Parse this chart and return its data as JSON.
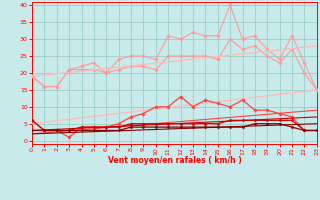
{
  "xlabel": "Vent moyen/en rafales ( km/h )",
  "xlim": [
    0,
    23
  ],
  "ylim": [
    -1,
    41
  ],
  "yticks": [
    0,
    5,
    10,
    15,
    20,
    25,
    30,
    35,
    40
  ],
  "xticks": [
    0,
    1,
    2,
    3,
    4,
    5,
    6,
    7,
    8,
    9,
    10,
    11,
    12,
    13,
    14,
    15,
    16,
    17,
    18,
    19,
    20,
    21,
    22,
    23
  ],
  "background_color": "#c8eaea",
  "grid_color": "#90c8c0",
  "series": [
    {
      "name": "line1_lightest_jagged",
      "color": "#ff9999",
      "lw": 0.8,
      "marker": "D",
      "markersize": 1.8,
      "data_x": [
        0,
        1,
        2,
        3,
        4,
        5,
        6,
        7,
        8,
        9,
        10,
        11,
        12,
        13,
        14,
        15,
        16,
        17,
        18,
        19,
        20,
        21,
        22,
        23
      ],
      "data_y": [
        19,
        16,
        16,
        21,
        22,
        23,
        20,
        24,
        25,
        25,
        24,
        31,
        30,
        32,
        31,
        31,
        40,
        30,
        31,
        27,
        24,
        31,
        23,
        15
      ]
    },
    {
      "name": "line2_light_upper",
      "color": "#ff9999",
      "lw": 0.8,
      "marker": "D",
      "markersize": 1.8,
      "data_x": [
        0,
        1,
        2,
        3,
        4,
        5,
        6,
        7,
        8,
        9,
        10,
        11,
        12,
        13,
        14,
        15,
        16,
        17,
        18,
        19,
        20,
        21,
        22,
        23
      ],
      "data_y": [
        19,
        16,
        16,
        21,
        21,
        21,
        20,
        21,
        22,
        22,
        21,
        25,
        25,
        25,
        25,
        24,
        30,
        27,
        28,
        25,
        23,
        27,
        20,
        15
      ]
    },
    {
      "name": "line3_light_trend_upper",
      "color": "#ffbbbb",
      "lw": 1.0,
      "marker": null,
      "markersize": 0,
      "data_x": [
        0,
        23
      ],
      "data_y": [
        19,
        28
      ]
    },
    {
      "name": "line4_light_trend_lower",
      "color": "#ffbbbb",
      "lw": 1.0,
      "marker": null,
      "markersize": 0,
      "data_x": [
        0,
        23
      ],
      "data_y": [
        5,
        15
      ]
    },
    {
      "name": "line5_medium_jagged",
      "color": "#ff4444",
      "lw": 0.9,
      "marker": "D",
      "markersize": 1.8,
      "data_x": [
        0,
        1,
        2,
        3,
        4,
        5,
        6,
        7,
        8,
        9,
        10,
        11,
        12,
        13,
        14,
        15,
        16,
        17,
        18,
        19,
        20,
        21,
        22,
        23
      ],
      "data_y": [
        6,
        3,
        3,
        1,
        4,
        4,
        4,
        5,
        7,
        8,
        10,
        10,
        13,
        10,
        12,
        11,
        10,
        12,
        9,
        9,
        8,
        7,
        3,
        3
      ]
    },
    {
      "name": "line6_medium_trend",
      "color": "#ff4444",
      "lw": 0.8,
      "marker": null,
      "markersize": 0,
      "data_x": [
        0,
        23
      ],
      "data_y": [
        2,
        9
      ]
    },
    {
      "name": "line7_dark_jagged",
      "color": "#cc0000",
      "lw": 0.9,
      "marker": "D",
      "markersize": 1.5,
      "data_x": [
        0,
        1,
        2,
        3,
        4,
        5,
        6,
        7,
        8,
        9,
        10,
        11,
        12,
        13,
        14,
        15,
        16,
        17,
        18,
        19,
        20,
        21,
        22,
        23
      ],
      "data_y": [
        6,
        3,
        3,
        3,
        4,
        4,
        4,
        4,
        5,
        5,
        5,
        5,
        5,
        5,
        5,
        5,
        6,
        6,
        6,
        6,
        6,
        6,
        3,
        3
      ]
    },
    {
      "name": "line8_dark_trend",
      "color": "#cc0000",
      "lw": 0.8,
      "marker": null,
      "markersize": 0,
      "data_x": [
        0,
        23
      ],
      "data_y": [
        3,
        7
      ]
    },
    {
      "name": "line9_darkest_jagged",
      "color": "#880000",
      "lw": 0.9,
      "marker": "D",
      "markersize": 1.5,
      "data_x": [
        0,
        1,
        2,
        3,
        4,
        5,
        6,
        7,
        8,
        9,
        10,
        11,
        12,
        13,
        14,
        15,
        16,
        17,
        18,
        19,
        20,
        21,
        22,
        23
      ],
      "data_y": [
        3,
        3,
        3,
        3,
        3,
        3,
        3,
        3,
        4,
        4,
        4,
        4,
        4,
        4,
        4,
        4,
        4,
        4,
        5,
        5,
        5,
        4,
        3,
        3
      ]
    },
    {
      "name": "line10_darkest_trend",
      "color": "#880000",
      "lw": 0.8,
      "marker": null,
      "markersize": 0,
      "data_x": [
        0,
        23
      ],
      "data_y": [
        2,
        5
      ]
    }
  ]
}
